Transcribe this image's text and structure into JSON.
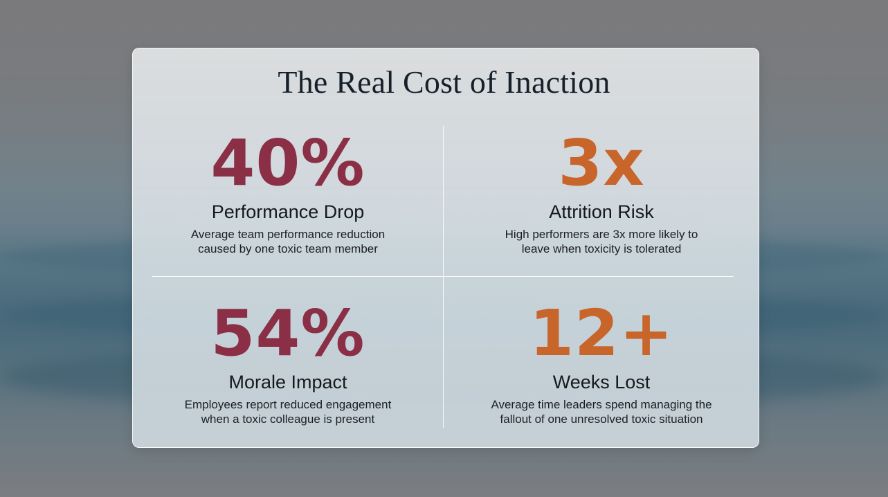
{
  "title": "The Real Cost of Inaction",
  "accent_colors": {
    "maroon": "#8a2f45",
    "orange": "#c8652a"
  },
  "stats": [
    {
      "value": "40%",
      "label": "Performance Drop",
      "desc_line1": "Average team performance reduction",
      "desc_line2": "caused by one toxic team member",
      "color": "maroon"
    },
    {
      "value": "3x",
      "label": "Attrition Risk",
      "desc_line1": "High performers are 3x more likely to",
      "desc_line2": "leave when toxicity is tolerated",
      "color": "orange"
    },
    {
      "value": "54%",
      "label": "Morale Impact",
      "desc_line1": "Employees report reduced engagement",
      "desc_line2": "when a toxic colleague is present",
      "color": "maroon"
    },
    {
      "value": "12+",
      "label": "Weeks Lost",
      "desc_line1": "Average time leaders spend managing the",
      "desc_line2": "fallout of one unresolved toxic situation",
      "color": "orange"
    }
  ]
}
